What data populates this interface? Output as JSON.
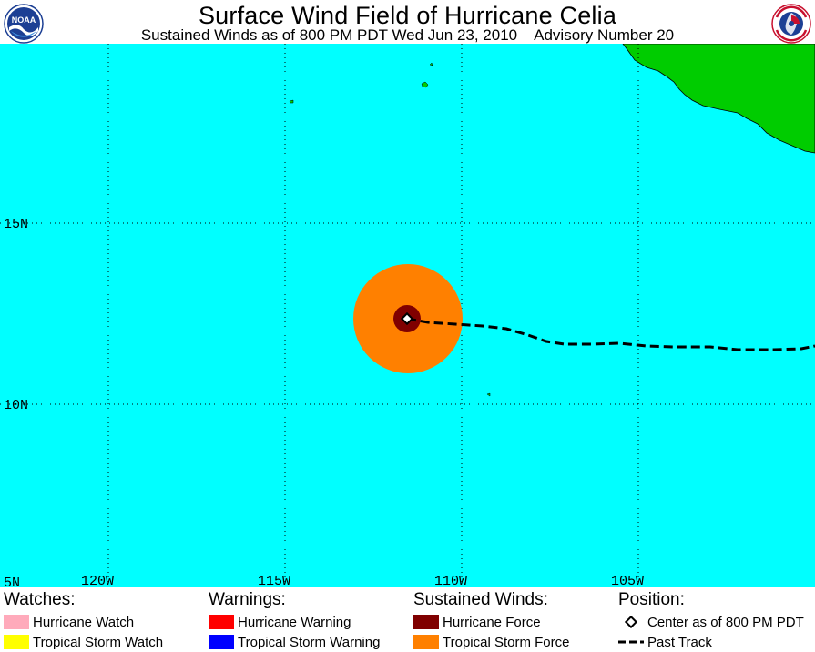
{
  "header": {
    "title": "Surface Wind Field of Hurricane Celia",
    "subtitle_left": "Sustained Winds as of 800 PM PDT Wed Jun 23, 2010",
    "subtitle_right": "Advisory Number 20",
    "logo_left": "NOAA",
    "logo_right": "NATIONAL WEATHER SERVICE"
  },
  "map": {
    "ocean_color": "#00ffff",
    "land_color": "#00cc00",
    "graticule": {
      "lat_labels": [
        "15N",
        "10N",
        "5N"
      ],
      "lon_labels": [
        "120W",
        "115W",
        "110W",
        "105W"
      ]
    },
    "storm": {
      "name": "Celia",
      "center": {
        "lat": 12.4,
        "lon": 111.5
      },
      "tropical_storm_force_color": "#ff8000",
      "hurricane_force_color": "#800000",
      "track_color": "#000000"
    }
  },
  "legend": {
    "watches": {
      "heading": "Watches:",
      "items": [
        {
          "label": "Hurricane Watch",
          "color": "#ffaabb"
        },
        {
          "label": "Tropical Storm Watch",
          "color": "#ffff00"
        }
      ]
    },
    "warnings": {
      "heading": "Warnings:",
      "items": [
        {
          "label": "Hurricane Warning",
          "color": "#ff0000"
        },
        {
          "label": "Tropical Storm Warning",
          "color": "#0000ff"
        }
      ]
    },
    "winds": {
      "heading": "Sustained Winds:",
      "items": [
        {
          "label": "Hurricane Force",
          "color": "#800000"
        },
        {
          "label": "Tropical Storm Force",
          "color": "#ff8000"
        }
      ]
    },
    "position": {
      "heading": "Position:",
      "items": [
        {
          "label": "Center as of 800 PM PDT",
          "icon": "diamond-icon"
        },
        {
          "label": "Past Track",
          "icon": "dashed-line-icon"
        }
      ]
    }
  }
}
